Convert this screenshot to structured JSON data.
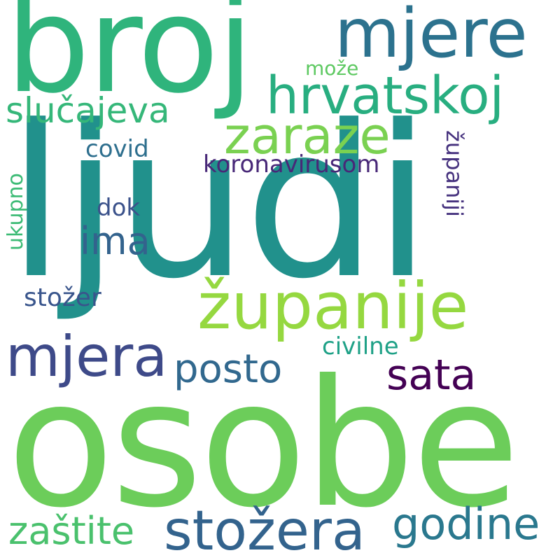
{
  "words": [
    {
      "text": "ljudi",
      "color": "#21918c"
    },
    {
      "text": "osobe",
      "color": "#6ccd5a"
    },
    {
      "text": "broj",
      "color": "#2fb47c"
    },
    {
      "text": "mjere",
      "color": "#2c728e"
    },
    {
      "text": "hrvatskoj",
      "color": "#28ae80"
    },
    {
      "text": "slučajeva",
      "color": "#35b779"
    },
    {
      "text": "zaraze",
      "color": "#7ad151"
    },
    {
      "text": "može",
      "color": "#5ec962"
    },
    {
      "text": "covid",
      "color": "#2e6f8e"
    },
    {
      "text": "koronavirusom",
      "color": "#482878"
    },
    {
      "text": "županiji",
      "color": "#46327e"
    },
    {
      "text": "ukupno",
      "color": "#3cbb75"
    },
    {
      "text": "dok",
      "color": "#3b528b"
    },
    {
      "text": "ima",
      "color": "#33638d"
    },
    {
      "text": "županije",
      "color": "#95d840"
    },
    {
      "text": "stožer",
      "color": "#39558c"
    },
    {
      "text": "mjera",
      "color": "#3e4a89"
    },
    {
      "text": "posto",
      "color": "#31688e"
    },
    {
      "text": "civilne",
      "color": "#1fa187"
    },
    {
      "text": "sata",
      "color": "#440154"
    },
    {
      "text": "zaštite",
      "color": "#4ac16d"
    },
    {
      "text": "stožera",
      "color": "#33638d"
    },
    {
      "text": "godine",
      "color": "#2a788e"
    }
  ]
}
